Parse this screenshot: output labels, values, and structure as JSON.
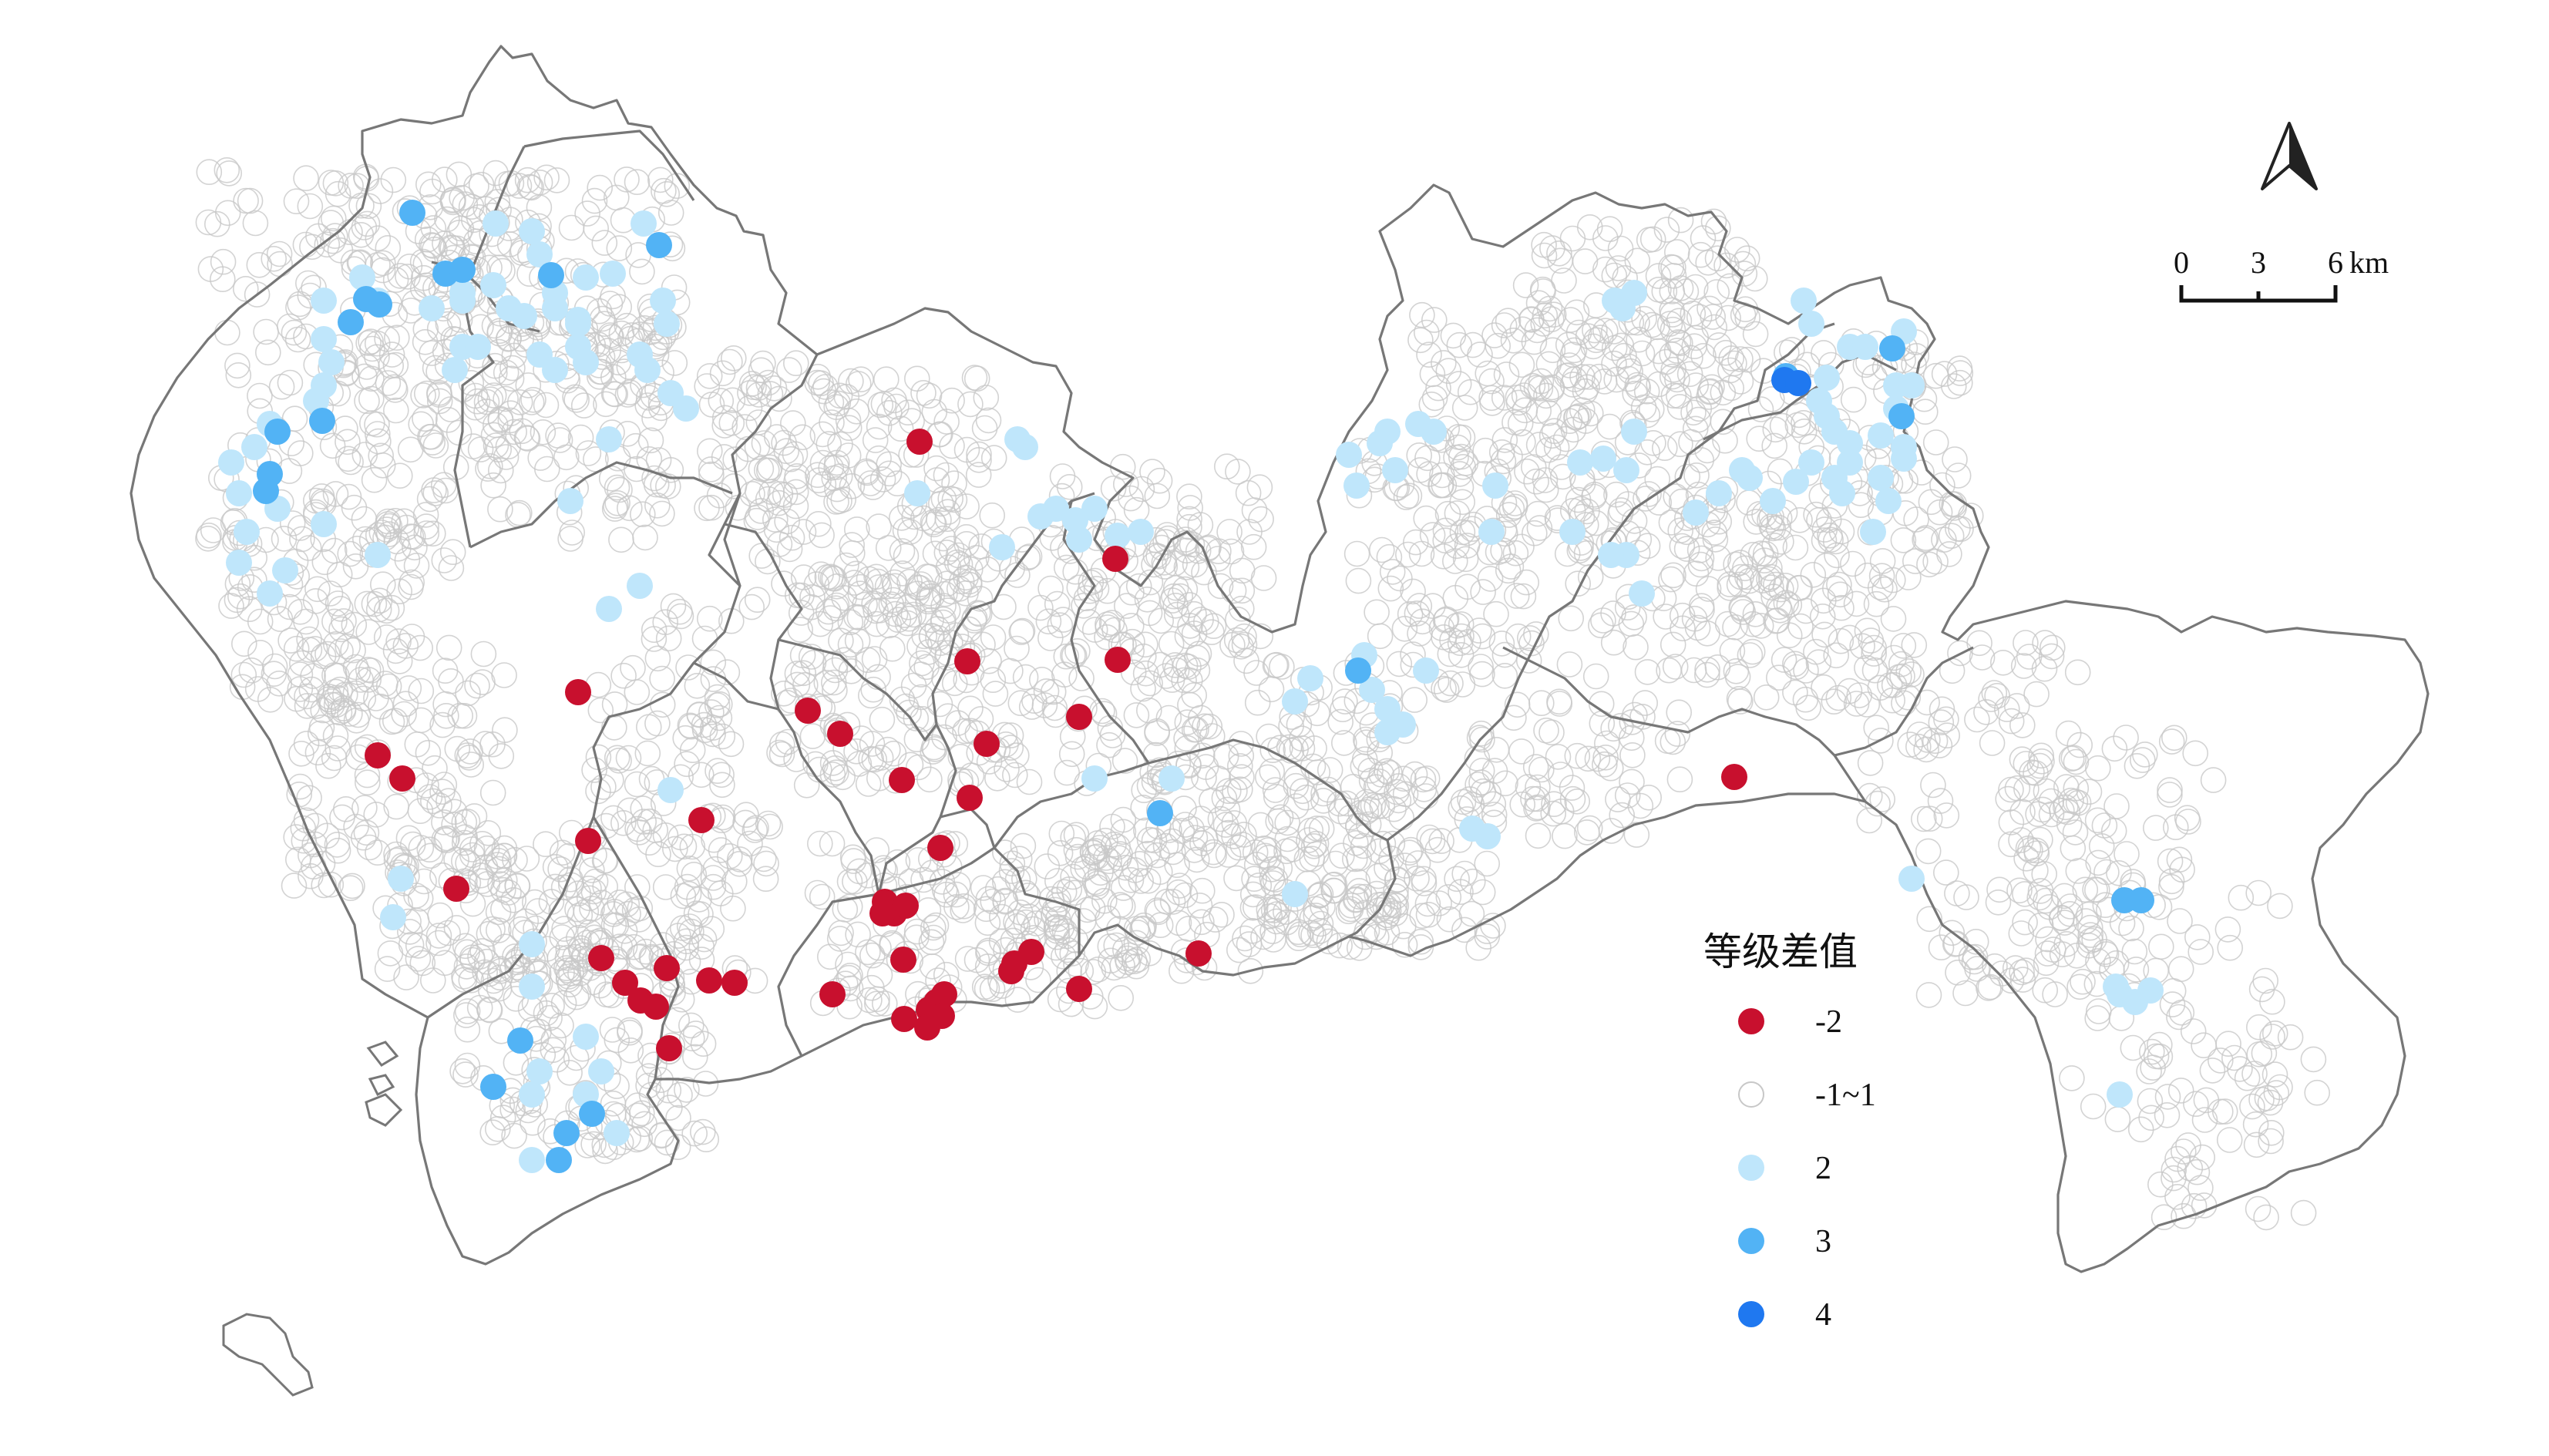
{
  "legend": {
    "title": "等级差值",
    "items": [
      {
        "label": "-2",
        "color": "#c8102e",
        "style": "filled"
      },
      {
        "label": "-1~1",
        "color": "#c8c8c8",
        "style": "hollow"
      },
      {
        "label": "2",
        "color": "#bfe6fb",
        "style": "filled"
      },
      {
        "label": "3",
        "color": "#52b3f5",
        "style": "filled"
      },
      {
        "label": "4",
        "color": "#1f78f0",
        "style": "filled"
      }
    ]
  },
  "scale_bar": {
    "ticks": [
      "0",
      "3",
      "6"
    ],
    "unit": "km"
  },
  "north_arrow": {
    "icon": "north-arrow-icon"
  },
  "colors": {
    "boundary": "#777777",
    "background": "#ffffff",
    "hollow_stroke": "#c8c8c8"
  }
}
